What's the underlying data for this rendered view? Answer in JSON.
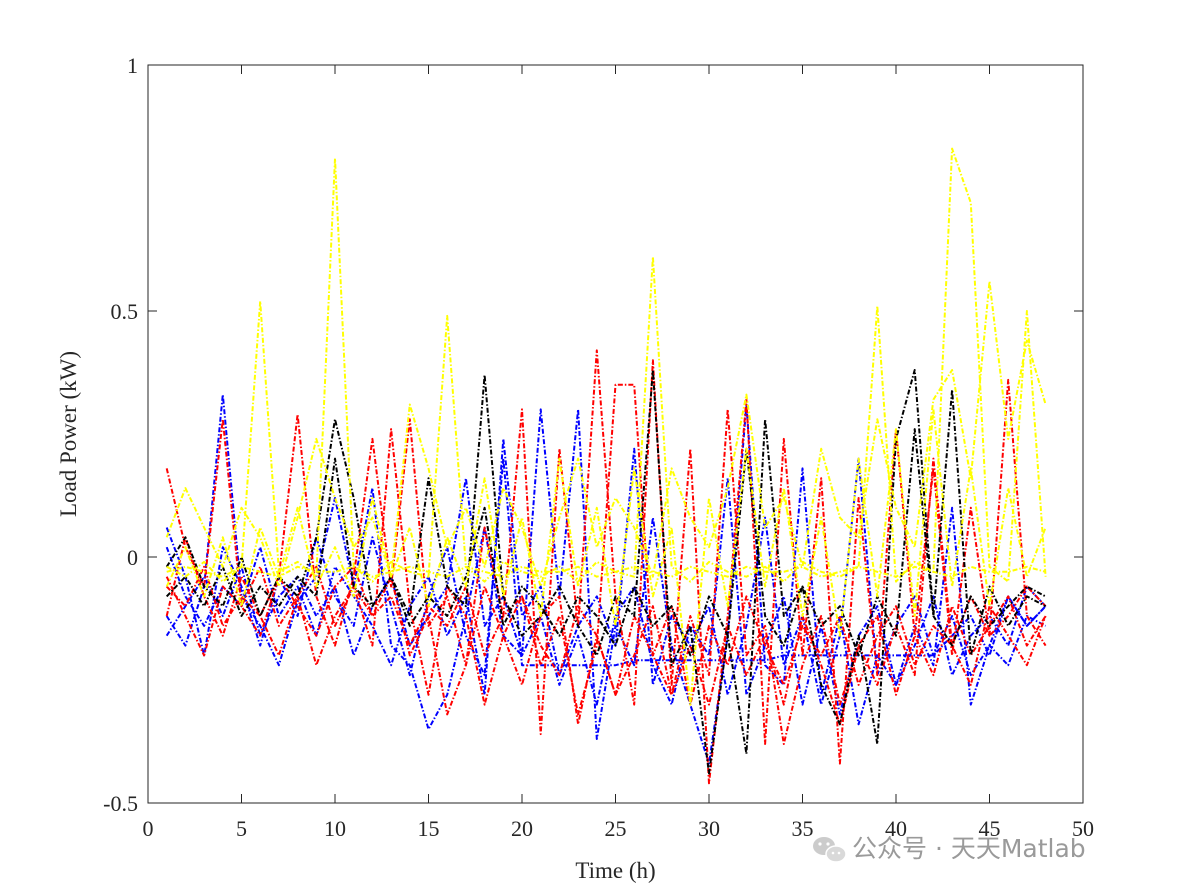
{
  "chart_data": {
    "type": "line",
    "title": "",
    "xlabel": "Time (h)",
    "ylabel": "Load Power (kW)",
    "xlim": [
      0,
      50
    ],
    "ylim": [
      -0.5,
      1
    ],
    "xticks": [
      0,
      5,
      10,
      15,
      20,
      25,
      30,
      35,
      40,
      45,
      50
    ],
    "xtick_labels": [
      "0",
      "5",
      "10",
      "15",
      "20",
      "25",
      "30",
      "35",
      "40",
      "45",
      "50"
    ],
    "yticks": [
      -0.5,
      0,
      0.5,
      1
    ],
    "ytick_labels": [
      "-0.5",
      "0",
      "0.5",
      "1"
    ],
    "grid": false,
    "legend": "none",
    "line_style": "dashed",
    "colors": {
      "blue": "#0000ff",
      "red": "#ff0000",
      "black": "#000000",
      "yellow": "#ffff00"
    },
    "x": [
      1,
      2,
      3,
      4,
      5,
      6,
      7,
      8,
      9,
      10,
      11,
      12,
      13,
      14,
      15,
      16,
      17,
      18,
      19,
      20,
      21,
      22,
      23,
      24,
      25,
      26,
      27,
      28,
      29,
      30,
      31,
      32,
      33,
      34,
      35,
      36,
      37,
      38,
      39,
      40,
      41,
      42,
      43,
      44,
      45,
      46,
      47,
      48
    ],
    "series": [
      {
        "color": "#0000ff",
        "values": [
          -0.12,
          -0.18,
          -0.06,
          0.33,
          -0.08,
          -0.14,
          -0.22,
          -0.09,
          -0.04,
          0.12,
          -0.06,
          0.14,
          -0.18,
          -0.22,
          -0.35,
          -0.28,
          -0.12,
          0.06,
          -0.16,
          -0.2,
          0.3,
          -0.08,
          0.3,
          -0.37,
          -0.14,
          -0.22,
          0.08,
          -0.18,
          -0.3,
          -0.42,
          -0.16,
          0.31,
          -0.22,
          -0.26,
          0.18,
          -0.28,
          -0.12,
          -0.34,
          -0.2,
          -0.26,
          -0.14,
          -0.22,
          0.1,
          -0.3,
          -0.18,
          -0.22,
          -0.12,
          -0.14
        ]
      },
      {
        "color": "#0000ff",
        "values": [
          0.06,
          -0.04,
          -0.2,
          0.02,
          -0.06,
          -0.18,
          -0.04,
          -0.12,
          0.04,
          -0.08,
          -0.14,
          0.04,
          -0.1,
          -0.24,
          -0.08,
          0.02,
          -0.16,
          -0.24,
          0.2,
          -0.22,
          -0.22,
          -0.22,
          -0.22,
          -0.22,
          -0.22,
          -0.21,
          -0.21,
          -0.21,
          -0.21,
          -0.21,
          -0.21,
          -0.21,
          -0.21,
          -0.2,
          -0.2,
          -0.2,
          -0.2,
          -0.2,
          -0.2,
          -0.2,
          -0.2,
          -0.2,
          -0.16,
          -0.12,
          -0.2,
          -0.08,
          -0.14,
          -0.1
        ]
      },
      {
        "color": "#0000ff",
        "values": [
          -0.16,
          -0.1,
          -0.04,
          -0.12,
          -0.02,
          -0.16,
          -0.08,
          -0.04,
          -0.12,
          -0.06,
          -0.2,
          -0.1,
          -0.04,
          -0.18,
          -0.12,
          -0.06,
          0.16,
          -0.14,
          -0.08,
          -0.2,
          -0.12,
          -0.26,
          -0.16,
          -0.3,
          -0.12,
          -0.06,
          -0.22,
          -0.3,
          -0.14,
          -0.2,
          0.16,
          -0.28,
          -0.18,
          -0.08,
          -0.3,
          -0.14,
          -0.32,
          -0.16,
          -0.1,
          -0.26,
          -0.18,
          -0.08,
          -0.24,
          -0.16,
          -0.12,
          -0.18,
          -0.06,
          -0.1
        ]
      },
      {
        "color": "#0000ff",
        "values": [
          0.02,
          -0.08,
          -0.14,
          -0.06,
          -0.1,
          0.02,
          -0.12,
          -0.06,
          -0.16,
          -0.02,
          -0.08,
          -0.14,
          -0.22,
          -0.1,
          -0.04,
          -0.16,
          -0.08,
          -0.28,
          0.24,
          -0.12,
          -0.06,
          -0.24,
          -0.14,
          -0.08,
          -0.18,
          0.22,
          -0.26,
          -0.12,
          -0.18,
          -0.1,
          -0.28,
          -0.14,
          0.08,
          -0.22,
          -0.12,
          -0.3,
          -0.16,
          0.2,
          -0.24,
          -0.14,
          -0.08,
          -0.2,
          -0.12,
          -0.24,
          -0.18,
          -0.08,
          -0.14,
          -0.1
        ]
      },
      {
        "color": "#ff0000",
        "values": [
          0.18,
          0.02,
          -0.06,
          0.28,
          -0.1,
          -0.16,
          -0.04,
          0.29,
          -0.08,
          -0.18,
          -0.04,
          0.24,
          -0.06,
          0.28,
          -0.14,
          -0.08,
          -0.22,
          0.06,
          -0.12,
          0.3,
          -0.36,
          0.22,
          -0.14,
          0.42,
          -0.08,
          -0.3,
          0.4,
          -0.26,
          0.22,
          -0.46,
          -0.12,
          0.32,
          -0.38,
          0.24,
          -0.2,
          0.16,
          -0.42,
          0.12,
          -0.24,
          0.26,
          -0.16,
          0.18,
          -0.2,
          0.1,
          -0.16,
          0.36,
          -0.12,
          -0.18
        ]
      },
      {
        "color": "#ff0000",
        "values": [
          -0.04,
          -0.12,
          -0.2,
          -0.06,
          -0.1,
          -0.02,
          -0.14,
          -0.08,
          -0.22,
          -0.12,
          -0.06,
          -0.18,
          0.26,
          -0.1,
          -0.28,
          -0.06,
          -0.12,
          -0.3,
          -0.16,
          -0.08,
          -0.22,
          -0.12,
          -0.32,
          -0.18,
          0.35,
          0.35,
          -0.2,
          -0.28,
          -0.12,
          -0.24,
          0.3,
          -0.2,
          -0.14,
          -0.38,
          -0.22,
          -0.12,
          -0.3,
          -0.18,
          -0.26,
          -0.14,
          -0.24,
          0.2,
          -0.18,
          -0.26,
          -0.1,
          -0.16,
          -0.22,
          -0.12
        ]
      },
      {
        "color": "#ff0000",
        "values": [
          -0.12,
          0.04,
          -0.08,
          -0.16,
          -0.04,
          -0.12,
          -0.2,
          -0.08,
          -0.02,
          -0.14,
          -0.06,
          -0.12,
          -0.04,
          -0.2,
          -0.12,
          -0.32,
          -0.22,
          -0.06,
          -0.16,
          -0.26,
          -0.12,
          -0.08,
          -0.34,
          -0.16,
          -0.28,
          -0.2,
          -0.1,
          -0.28,
          -0.18,
          -0.3,
          -0.14,
          -0.24,
          -0.16,
          -0.3,
          -0.12,
          -0.22,
          -0.34,
          -0.18,
          -0.12,
          -0.28,
          -0.16,
          -0.24,
          -0.1,
          -0.2,
          -0.14,
          -0.08,
          -0.18,
          -0.12
        ]
      },
      {
        "color": "#ff0000",
        "values": [
          -0.06,
          -0.1,
          -0.02,
          -0.14,
          -0.08,
          -0.12,
          -0.04,
          -0.1,
          -0.16,
          -0.06,
          -0.02,
          -0.12,
          -0.08,
          -0.18,
          -0.1,
          -0.14,
          -0.06,
          -0.2,
          -0.12,
          -0.08,
          -0.18,
          -0.24,
          -0.1,
          -0.16,
          -0.28,
          -0.12,
          -0.2,
          -0.1,
          -0.3,
          -0.14,
          -0.22,
          -0.08,
          -0.18,
          -0.26,
          -0.14,
          -0.2,
          -0.12,
          -0.26,
          -0.16,
          -0.1,
          -0.22,
          -0.14,
          -0.18,
          -0.08,
          -0.16,
          -0.12,
          -0.06,
          -0.1
        ]
      },
      {
        "color": "#000000",
        "values": [
          -0.02,
          0.04,
          -0.06,
          -0.1,
          0.0,
          -0.12,
          -0.04,
          -0.08,
          0.04,
          0.28,
          0.12,
          -0.1,
          -0.04,
          -0.12,
          0.16,
          -0.06,
          -0.1,
          0.37,
          -0.08,
          -0.16,
          -0.12,
          -0.06,
          -0.14,
          -0.2,
          -0.08,
          -0.12,
          0.38,
          -0.22,
          -0.14,
          -0.44,
          -0.16,
          -0.4,
          0.28,
          -0.12,
          -0.06,
          -0.26,
          -0.34,
          -0.16,
          -0.38,
          0.24,
          0.38,
          -0.12,
          0.34,
          -0.2,
          -0.06,
          -0.14,
          -0.08,
          -0.1
        ]
      },
      {
        "color": "#000000",
        "values": [
          -0.08,
          -0.04,
          -0.1,
          -0.02,
          -0.12,
          -0.06,
          -0.1,
          -0.04,
          -0.08,
          0.2,
          -0.06,
          -0.1,
          -0.04,
          -0.14,
          -0.08,
          -0.12,
          -0.04,
          0.1,
          -0.14,
          -0.06,
          -0.1,
          -0.16,
          -0.08,
          -0.12,
          -0.18,
          -0.06,
          -0.14,
          -0.1,
          -0.2,
          -0.08,
          -0.16,
          0.22,
          -0.12,
          -0.18,
          -0.06,
          -0.14,
          -0.1,
          -0.2,
          -0.08,
          -0.16,
          0.26,
          -0.12,
          -0.18,
          -0.08,
          -0.14,
          -0.1,
          -0.06,
          -0.08
        ]
      },
      {
        "color": "#ffff00",
        "values": [
          -0.02,
          -0.04,
          -0.01,
          -0.05,
          -0.02,
          0.52,
          -0.03,
          -0.01,
          -0.04,
          0.81,
          -0.02,
          -0.05,
          -0.01,
          -0.03,
          -0.04,
          0.49,
          -0.02,
          -0.05,
          -0.01,
          -0.03,
          -0.04,
          -0.02,
          -0.05,
          -0.01,
          -0.03,
          -0.04,
          0.61,
          -0.02,
          -0.05,
          -0.01,
          -0.03,
          -0.04,
          -0.02,
          -0.05,
          -0.01,
          -0.03,
          -0.04,
          -0.02,
          0.51,
          -0.05,
          -0.01,
          -0.03,
          0.83,
          0.72,
          -0.02,
          -0.05,
          0.5,
          -0.04
        ]
      },
      {
        "color": "#ffff00",
        "values": [
          0.04,
          0.14,
          0.06,
          -0.02,
          0.1,
          0.04,
          -0.06,
          0.08,
          0.24,
          0.12,
          0.02,
          0.08,
          -0.04,
          0.31,
          0.18,
          0.02,
          0.1,
          -0.02,
          0.14,
          0.06,
          -0.06,
          0.08,
          0.2,
          0.02,
          0.12,
          0.06,
          -0.04,
          0.18,
          0.08,
          0.02,
          0.14,
          0.33,
          0.06,
          0.12,
          -0.02,
          0.22,
          0.08,
          0.04,
          0.28,
          0.1,
          0.02,
          0.32,
          0.38,
          0.16,
          0.56,
          0.24,
          0.44,
          0.31
        ]
      },
      {
        "color": "#ffff00",
        "values": [
          -0.03,
          -0.02,
          -0.03,
          -0.04,
          -0.02,
          -0.03,
          -0.04,
          -0.02,
          -0.03,
          -0.03,
          -0.02,
          -0.04,
          -0.03,
          -0.02,
          -0.03,
          -0.04,
          -0.02,
          -0.03,
          -0.04,
          -0.02,
          -0.03,
          -0.03,
          -0.02,
          -0.04,
          -0.03,
          -0.02,
          -0.03,
          -0.04,
          -0.02,
          -0.03,
          -0.04,
          -0.02,
          -0.03,
          -0.03,
          -0.02,
          -0.04,
          -0.03,
          -0.02,
          -0.03,
          -0.04,
          -0.02,
          -0.03,
          -0.04,
          -0.02,
          -0.03,
          -0.03,
          -0.02,
          -0.03
        ]
      },
      {
        "color": "#ffff00",
        "values": [
          -0.06,
          0.02,
          -0.08,
          0.04,
          -0.1,
          0.06,
          -0.04,
          0.1,
          -0.06,
          0.02,
          -0.08,
          0.12,
          -0.04,
          0.06,
          -0.1,
          0.04,
          -0.06,
          0.16,
          -0.08,
          0.08,
          -0.12,
          0.2,
          -0.06,
          0.1,
          -0.14,
          0.18,
          -0.08,
          0.06,
          -0.3,
          0.12,
          -0.1,
          0.22,
          -0.06,
          0.14,
          -0.12,
          0.08,
          -0.16,
          0.2,
          -0.08,
          0.26,
          -0.12,
          0.3,
          -0.06,
          0.18,
          -0.1,
          0.14,
          -0.04,
          0.06
        ]
      }
    ]
  },
  "watermark": {
    "text": "公众号 · 天天Matlab",
    "icon": "wechat-icon"
  }
}
